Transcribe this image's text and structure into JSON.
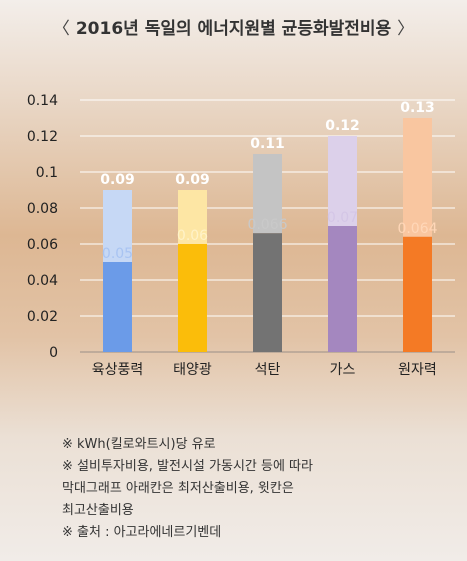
{
  "title": "2016년 독일의 에너지원별 균등화발전비용",
  "title_bracket_left": "〈",
  "title_bracket_right": "〉",
  "notes": [
    "※ kWh(킬로와트시)당 유로",
    "※ 설비투자비용, 발전시설 가동시간 등에 따라\n    막대그래프 아래칸은 최저산출비용, 윗칸은\n    최고산출비용",
    "※ 출처 : 아고라에네르기벤데"
  ],
  "chart_data": {
    "type": "bar",
    "stacked_range": true,
    "categories": [
      "육상풍력",
      "태양광",
      "석탄",
      "가스",
      "원자력"
    ],
    "series": [
      {
        "values": [
          0.05,
          0.06,
          0.066,
          0.07,
          0.064
        ]
      },
      {
        "values": [
          0.09,
          0.09,
          0.11,
          0.12,
          0.13
        ]
      }
    ],
    "ylim": [
      0,
      0.14
    ],
    "yticks": [
      "0",
      "0.02",
      "0.04",
      "0.06",
      "0.08",
      "0.1",
      "0.12",
      "0.14"
    ],
    "low_labels": [
      "0.05",
      "0.06",
      "0.066",
      "0.07",
      "0.064"
    ],
    "high_labels": [
      "0.09",
      "0.09",
      "0.11",
      "0.12",
      "0.13"
    ],
    "grid": true,
    "colors": {
      "low": [
        "#6b9be8",
        "#fbbd0a",
        "#737373",
        "#a487bf",
        "#f47a25"
      ],
      "high": [
        "#c6d8f5",
        "#fde6a4",
        "#c4c4c4",
        "#dcd0ea",
        "#f9c6a0"
      ],
      "low_label": [
        "#a9c4f2",
        "#fff2c8",
        "#c9c9c9",
        "#d4c6e6",
        "#ffd7b8"
      ],
      "grid": "#ffffff",
      "axis": "#9a8f88"
    }
  }
}
